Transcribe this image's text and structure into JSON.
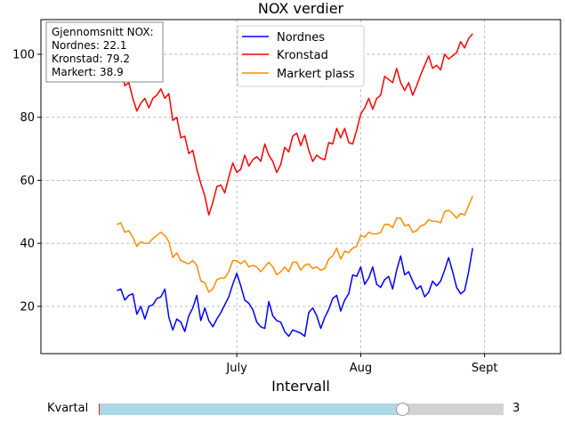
{
  "chart_data": {
    "type": "line",
    "title": "NOX verdier",
    "xlabel": "Intervall",
    "ylabel": "",
    "x_ticks": [
      {
        "day": 30,
        "label": "July"
      },
      {
        "day": 61,
        "label": "Aug"
      },
      {
        "day": 92,
        "label": "Sept"
      }
    ],
    "y_ticks": [
      20,
      40,
      60,
      80,
      100
    ],
    "ylim": [
      5,
      111
    ],
    "xlim": [
      -19,
      111
    ],
    "grid": true,
    "legend_position": "top-center",
    "annotation": {
      "title": "Gjennomsnitt NOX:",
      "lines": [
        "Nordnes: 22.1",
        "Kronstad: 79.2",
        "Markert: 38.9"
      ]
    },
    "series": [
      {
        "name": "Nordnes",
        "color": "#0000ff",
        "values": [
          25,
          25.5,
          22,
          23.5,
          24,
          17.5,
          20,
          16,
          20,
          20.5,
          22.5,
          23,
          25.5,
          16.5,
          12.5,
          16,
          15,
          12,
          17,
          19.5,
          23.5,
          15.5,
          19.5,
          15.5,
          13.5,
          16,
          18,
          20.5,
          23,
          27,
          30.5,
          26.5,
          22,
          21,
          19,
          15,
          13.5,
          13,
          21.5,
          17,
          15.5,
          15,
          12,
          10.5,
          12.5,
          12,
          11.5,
          10.5,
          18,
          19.5,
          17,
          13,
          16.5,
          19,
          22.5,
          23.5,
          18.5,
          22,
          24,
          30,
          29.5,
          32.5,
          27,
          29,
          32.5,
          27,
          26,
          28.5,
          29.5,
          25.5,
          31.5,
          36,
          30,
          31,
          28,
          25.5,
          26.5,
          23,
          24.5,
          28,
          26.5,
          28,
          31.5,
          35.5,
          31,
          26,
          24,
          25,
          31,
          38.5
        ]
      },
      {
        "name": "Kronstad",
        "color": "#ff0000",
        "values": [
          95,
          96,
          90,
          91,
          86,
          82,
          84.5,
          86,
          83,
          86,
          87,
          89,
          86,
          87.5,
          79,
          80,
          73.5,
          74,
          68.5,
          69.5,
          63.5,
          59,
          55,
          49,
          53,
          58,
          58.5,
          56,
          61,
          65.5,
          62.5,
          63.5,
          68,
          64.5,
          66.5,
          67.5,
          66,
          71.5,
          68,
          66,
          62.5,
          65,
          70.5,
          69,
          74,
          75,
          71,
          74.5,
          69.5,
          66,
          68,
          67,
          66.5,
          72,
          71.5,
          76.5,
          73.5,
          76.5,
          72,
          71.5,
          76,
          81,
          83,
          86,
          82.5,
          86,
          87,
          93,
          92,
          91,
          95.5,
          91,
          88.5,
          91,
          87,
          90,
          93.5,
          96.5,
          99.5,
          95.5,
          96.5,
          95,
          100,
          98.5,
          99.5,
          100.5,
          104,
          102,
          105,
          106.5
        ]
      },
      {
        "name": "Markert plass",
        "color": "#ff8c00",
        "values": [
          46,
          46.5,
          43.5,
          44,
          42,
          39,
          40.5,
          40,
          40,
          41.5,
          42.5,
          43.5,
          42.5,
          40.5,
          35.5,
          37,
          34.5,
          34,
          33.5,
          34.5,
          33,
          28,
          27.5,
          24.5,
          25.5,
          28.5,
          29,
          29,
          31,
          34.5,
          34.5,
          33.5,
          34.5,
          32.5,
          33,
          32.5,
          31,
          32.5,
          34,
          32.5,
          30,
          31,
          32.5,
          31,
          34,
          34,
          31.5,
          33,
          33.5,
          32,
          32.5,
          31.5,
          32,
          35,
          36,
          38.5,
          35,
          37.5,
          37,
          38.5,
          39,
          42.5,
          42,
          43.5,
          43,
          43,
          43.5,
          46,
          46,
          45,
          48,
          48,
          45.5,
          46,
          43.5,
          44,
          45.5,
          46,
          47.5,
          47,
          47,
          46.5,
          50,
          50.5,
          49.5,
          48,
          49.5,
          49,
          52,
          55
        ]
      }
    ]
  },
  "ui": {
    "slider_label": "Kvartal",
    "slider_value": "3",
    "slider_min": 0,
    "slider_max": 4,
    "slider_current": 3
  }
}
